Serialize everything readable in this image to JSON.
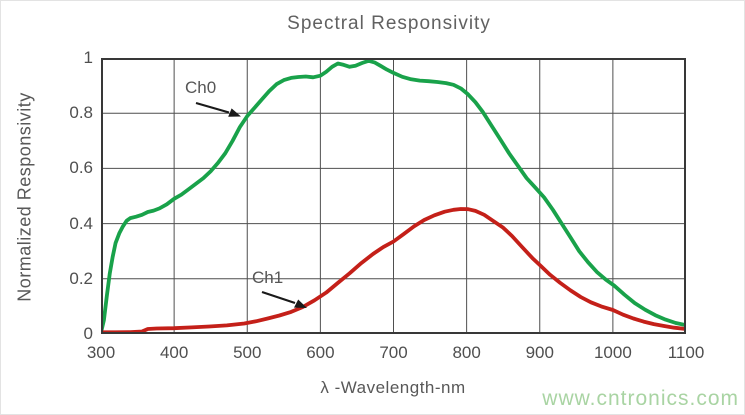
{
  "figure": {
    "watermark": "www.cntronics.com",
    "colors": {
      "ch0": "#19a24a",
      "ch1": "#c42019",
      "grid": "#4f4f4f",
      "frame": "#383838",
      "text": "#585858",
      "watermark": "#a9d4a3",
      "annotation_arrow": "#1a1a1a"
    }
  },
  "chart_data": {
    "type": "line",
    "title": "Spectral Responsivity",
    "xlabel": "λ -Wavelength-nm",
    "ylabel": "Normalized Responsivity",
    "xlim": [
      300,
      1100
    ],
    "ylim": [
      0,
      1
    ],
    "x_ticks": [
      300,
      400,
      500,
      600,
      700,
      800,
      900,
      1000,
      1100
    ],
    "y_ticks": [
      {
        "value": 1,
        "label": "1"
      },
      {
        "value": 0.8,
        "label": "0.8"
      },
      {
        "value": 0.6,
        "label": "0.6"
      },
      {
        "value": 0.4,
        "label": "0.4"
      },
      {
        "value": 0.2,
        "label": "0.2"
      },
      {
        "value": 0,
        "label": "0"
      }
    ],
    "grid": true,
    "legend_position": "inline-annotations",
    "series": [
      {
        "name": "Ch0",
        "color": "#19a24a",
        "points": [
          [
            300,
            0.005
          ],
          [
            304,
            0.05
          ],
          [
            308,
            0.14
          ],
          [
            312,
            0.22
          ],
          [
            316,
            0.28
          ],
          [
            320,
            0.33
          ],
          [
            325,
            0.365
          ],
          [
            330,
            0.39
          ],
          [
            335,
            0.41
          ],
          [
            340,
            0.42
          ],
          [
            348,
            0.425
          ],
          [
            356,
            0.432
          ],
          [
            364,
            0.442
          ],
          [
            372,
            0.447
          ],
          [
            380,
            0.455
          ],
          [
            390,
            0.47
          ],
          [
            400,
            0.49
          ],
          [
            410,
            0.505
          ],
          [
            420,
            0.525
          ],
          [
            430,
            0.545
          ],
          [
            440,
            0.565
          ],
          [
            450,
            0.59
          ],
          [
            460,
            0.62
          ],
          [
            470,
            0.655
          ],
          [
            480,
            0.7
          ],
          [
            490,
            0.75
          ],
          [
            500,
            0.79
          ],
          [
            510,
            0.82
          ],
          [
            520,
            0.85
          ],
          [
            530,
            0.88
          ],
          [
            540,
            0.905
          ],
          [
            550,
            0.92
          ],
          [
            560,
            0.928
          ],
          [
            570,
            0.931
          ],
          [
            580,
            0.933
          ],
          [
            590,
            0.93
          ],
          [
            600,
            0.936
          ],
          [
            608,
            0.95
          ],
          [
            616,
            0.968
          ],
          [
            624,
            0.98
          ],
          [
            632,
            0.975
          ],
          [
            640,
            0.968
          ],
          [
            648,
            0.972
          ],
          [
            657,
            0.982
          ],
          [
            666,
            0.99
          ],
          [
            674,
            0.984
          ],
          [
            682,
            0.972
          ],
          [
            691,
            0.958
          ],
          [
            700,
            0.946
          ],
          [
            712,
            0.932
          ],
          [
            724,
            0.923
          ],
          [
            736,
            0.918
          ],
          [
            748,
            0.916
          ],
          [
            760,
            0.913
          ],
          [
            772,
            0.909
          ],
          [
            782,
            0.903
          ],
          [
            792,
            0.89
          ],
          [
            802,
            0.868
          ],
          [
            812,
            0.84
          ],
          [
            822,
            0.805
          ],
          [
            834,
            0.755
          ],
          [
            846,
            0.705
          ],
          [
            858,
            0.655
          ],
          [
            870,
            0.61
          ],
          [
            882,
            0.565
          ],
          [
            894,
            0.53
          ],
          [
            906,
            0.495
          ],
          [
            918,
            0.45
          ],
          [
            930,
            0.4
          ],
          [
            942,
            0.35
          ],
          [
            954,
            0.3
          ],
          [
            966,
            0.26
          ],
          [
            978,
            0.225
          ],
          [
            990,
            0.198
          ],
          [
            1002,
            0.175
          ],
          [
            1016,
            0.142
          ],
          [
            1030,
            0.112
          ],
          [
            1044,
            0.088
          ],
          [
            1058,
            0.068
          ],
          [
            1072,
            0.052
          ],
          [
            1086,
            0.04
          ],
          [
            1100,
            0.032
          ]
        ]
      },
      {
        "name": "Ch1",
        "color": "#c42019",
        "points": [
          [
            300,
            0.006
          ],
          [
            320,
            0.006
          ],
          [
            340,
            0.007
          ],
          [
            356,
            0.009
          ],
          [
            364,
            0.018
          ],
          [
            376,
            0.02
          ],
          [
            400,
            0.021
          ],
          [
            424,
            0.024
          ],
          [
            448,
            0.027
          ],
          [
            472,
            0.031
          ],
          [
            496,
            0.038
          ],
          [
            512,
            0.046
          ],
          [
            528,
            0.056
          ],
          [
            544,
            0.067
          ],
          [
            560,
            0.08
          ],
          [
            576,
            0.098
          ],
          [
            592,
            0.122
          ],
          [
            608,
            0.15
          ],
          [
            624,
            0.185
          ],
          [
            640,
            0.22
          ],
          [
            656,
            0.257
          ],
          [
            672,
            0.29
          ],
          [
            686,
            0.315
          ],
          [
            700,
            0.335
          ],
          [
            714,
            0.362
          ],
          [
            728,
            0.39
          ],
          [
            742,
            0.413
          ],
          [
            756,
            0.43
          ],
          [
            770,
            0.443
          ],
          [
            782,
            0.45
          ],
          [
            792,
            0.453
          ],
          [
            802,
            0.452
          ],
          [
            812,
            0.446
          ],
          [
            824,
            0.432
          ],
          [
            836,
            0.41
          ],
          [
            850,
            0.385
          ],
          [
            862,
            0.355
          ],
          [
            876,
            0.315
          ],
          [
            890,
            0.275
          ],
          [
            900,
            0.25
          ],
          [
            914,
            0.215
          ],
          [
            928,
            0.185
          ],
          [
            942,
            0.158
          ],
          [
            956,
            0.134
          ],
          [
            970,
            0.115
          ],
          [
            984,
            0.1
          ],
          [
            1000,
            0.087
          ],
          [
            1014,
            0.07
          ],
          [
            1028,
            0.056
          ],
          [
            1042,
            0.045
          ],
          [
            1056,
            0.036
          ],
          [
            1070,
            0.029
          ],
          [
            1084,
            0.023
          ],
          [
            1100,
            0.018
          ]
        ]
      }
    ],
    "annotations": [
      {
        "text": "Ch0",
        "target": "ch0-curve"
      },
      {
        "text": "Ch1",
        "target": "ch1-curve"
      }
    ]
  }
}
